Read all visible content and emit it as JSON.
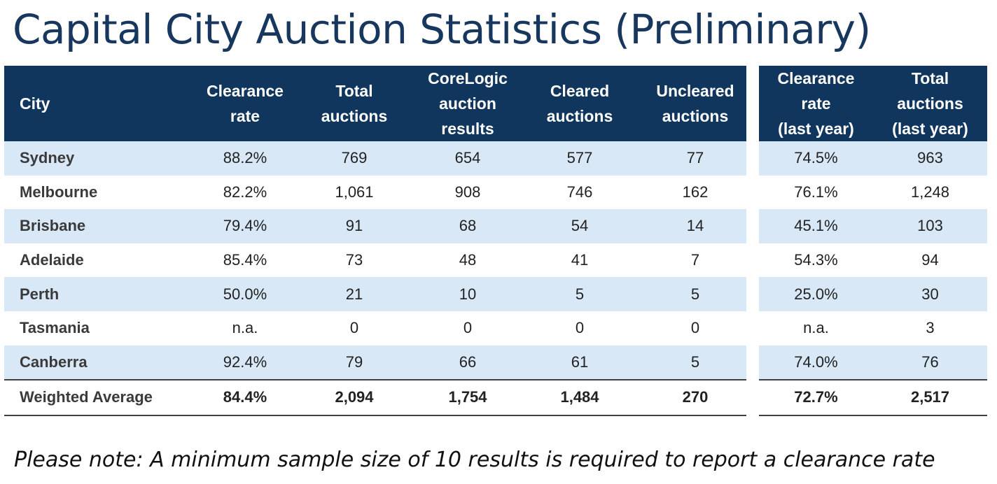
{
  "title": "Capital City Auction Statistics (Preliminary)",
  "headers": {
    "city": "City",
    "clearance_rate": [
      "Clearance",
      "rate"
    ],
    "total_auctions": [
      "Total",
      "auctions"
    ],
    "corelogic_results": [
      "CoreLogic",
      "auction",
      "results"
    ],
    "cleared_auctions": [
      "Cleared",
      "auctions"
    ],
    "uncleared_auctions": [
      "Uncleared",
      "auctions"
    ],
    "clearance_rate_last_year": [
      "Clearance",
      "rate",
      "(last year)"
    ],
    "total_auctions_last_year": [
      "Total",
      "auctions",
      "(last year)"
    ]
  },
  "rows": [
    {
      "city": "Sydney",
      "clearance_rate": "88.2%",
      "total_auctions": "769",
      "corelogic_results": "654",
      "cleared": "577",
      "uncleared": "77",
      "clearance_rate_ly": "74.5%",
      "total_auctions_ly": "963"
    },
    {
      "city": "Melbourne",
      "clearance_rate": "82.2%",
      "total_auctions": "1,061",
      "corelogic_results": "908",
      "cleared": "746",
      "uncleared": "162",
      "clearance_rate_ly": "76.1%",
      "total_auctions_ly": "1,248"
    },
    {
      "city": "Brisbane",
      "clearance_rate": "79.4%",
      "total_auctions": "91",
      "corelogic_results": "68",
      "cleared": "54",
      "uncleared": "14",
      "clearance_rate_ly": "45.1%",
      "total_auctions_ly": "103"
    },
    {
      "city": "Adelaide",
      "clearance_rate": "85.4%",
      "total_auctions": "73",
      "corelogic_results": "48",
      "cleared": "41",
      "uncleared": "7",
      "clearance_rate_ly": "54.3%",
      "total_auctions_ly": "94"
    },
    {
      "city": "Perth",
      "clearance_rate": "50.0%",
      "total_auctions": "21",
      "corelogic_results": "10",
      "cleared": "5",
      "uncleared": "5",
      "clearance_rate_ly": "25.0%",
      "total_auctions_ly": "30"
    },
    {
      "city": "Tasmania",
      "clearance_rate": "n.a.",
      "total_auctions": "0",
      "corelogic_results": "0",
      "cleared": "0",
      "uncleared": "0",
      "clearance_rate_ly": "n.a.",
      "total_auctions_ly": "3"
    },
    {
      "city": "Canberra",
      "clearance_rate": "92.4%",
      "total_auctions": "79",
      "corelogic_results": "66",
      "cleared": "61",
      "uncleared": "5",
      "clearance_rate_ly": "74.0%",
      "total_auctions_ly": "76"
    }
  ],
  "average": {
    "city": "Weighted Average",
    "clearance_rate": "84.4%",
    "total_auctions": "2,094",
    "corelogic_results": "1,754",
    "cleared": "1,484",
    "uncleared": "270",
    "clearance_rate_ly": "72.7%",
    "total_auctions_ly": "2,517"
  },
  "note": "Please note: A minimum sample size of 10 results is required to report a clearance rate",
  "colors": {
    "title": "#17375e",
    "header_bg": "#10365e",
    "row_alt_bg": "#d9e8f7"
  }
}
